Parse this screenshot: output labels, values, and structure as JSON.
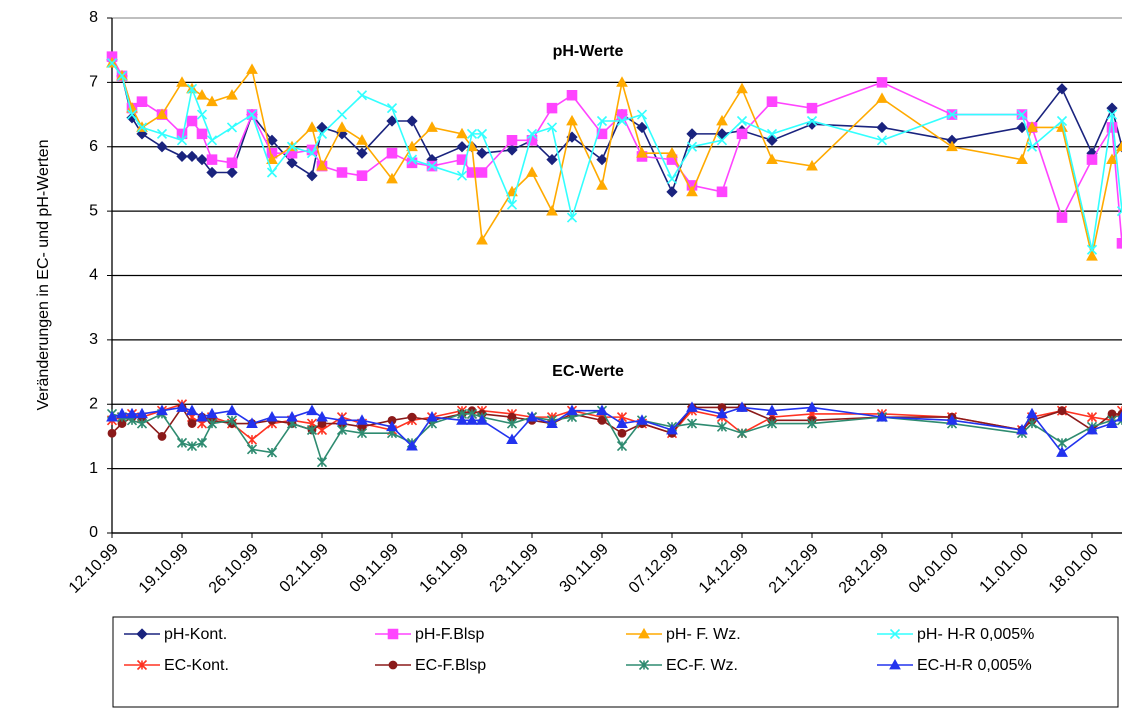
{
  "chart_data": {
    "type": "line",
    "annotations": [
      "pH-Werte",
      "EC-Werte"
    ],
    "ylabel": "Veränderungen in EC- und pH-Werten",
    "x": [
      "12.10.99",
      "13.10.99",
      "14.10.99",
      "15.10.99",
      "17.10.99",
      "19.10.99",
      "20.10.99",
      "21.10.99",
      "22.10.99",
      "24.10.99",
      "26.10.99",
      "28.10.99",
      "30.10.99",
      "01.11.99",
      "02.11.99",
      "04.11.99",
      "06.11.99",
      "09.11.99",
      "11.11.99",
      "13.11.99",
      "16.11.99",
      "17.11.99",
      "18.11.99",
      "21.11.99",
      "23.11.99",
      "25.11.99",
      "27.11.99",
      "30.11.99",
      "02.12.99",
      "04.12.99",
      "07.12.99",
      "09.12.99",
      "12.12.99",
      "14.12.99",
      "17.12.99",
      "21.12.99",
      "28.12.99",
      "04.01.00",
      "11.01.00",
      "12.01.00",
      "15.01.00",
      "18.01.00",
      "20.01.00",
      "21.01.00"
    ],
    "xlim": [
      "12.10.99",
      "21.01.00"
    ],
    "xticks": [
      "12.10.99",
      "19.10.99",
      "26.10.99",
      "02.11.99",
      "09.11.99",
      "16.11.99",
      "23.11.99",
      "30.11.99",
      "07.12.99",
      "14.12.99",
      "21.12.99",
      "28.12.99",
      "04.01.00",
      "11.01.00",
      "18.01.00"
    ],
    "ylim": [
      0,
      8
    ],
    "yticks": [
      0,
      1,
      2,
      3,
      4,
      5,
      6,
      7,
      8
    ],
    "grid": true,
    "series": [
      {
        "name": "pH-Kont.",
        "color": "#1a237e",
        "marker": "diamond",
        "values": [
          7.35,
          7.1,
          6.45,
          6.2,
          6.0,
          5.85,
          5.85,
          5.8,
          5.6,
          5.6,
          6.5,
          6.1,
          5.75,
          5.55,
          6.3,
          6.2,
          5.9,
          6.4,
          6.4,
          5.8,
          6.0,
          6.0,
          5.9,
          5.95,
          6.1,
          5.8,
          6.15,
          5.8,
          6.5,
          6.3,
          5.3,
          6.2,
          6.2,
          6.25,
          6.1,
          6.35,
          6.3,
          6.1,
          6.3,
          6.3,
          6.9,
          5.9,
          6.6,
          6.0
        ]
      },
      {
        "name": "pH-F.Blsp",
        "color": "#ff44ff",
        "marker": "square",
        "values": [
          7.4,
          7.1,
          6.6,
          6.7,
          6.5,
          6.2,
          6.4,
          6.2,
          5.8,
          5.75,
          6.5,
          5.9,
          5.9,
          5.95,
          5.7,
          5.6,
          5.55,
          5.9,
          5.75,
          5.7,
          5.8,
          5.6,
          5.6,
          6.1,
          6.1,
          6.6,
          6.8,
          6.2,
          6.5,
          5.85,
          5.8,
          5.4,
          5.3,
          6.2,
          6.7,
          6.6,
          7.0,
          6.5,
          6.5,
          6.3,
          4.9,
          5.8,
          6.3,
          4.5
        ]
      },
      {
        "name": "pH- F. Wz.",
        "color": "#ffaa00",
        "marker": "triangle",
        "values": [
          7.3,
          7.1,
          6.6,
          6.3,
          6.5,
          7.0,
          6.9,
          6.8,
          6.7,
          6.8,
          7.2,
          5.8,
          6.0,
          6.3,
          5.7,
          6.3,
          6.1,
          5.5,
          6.0,
          6.3,
          6.2,
          6.0,
          4.55,
          5.3,
          5.6,
          5.0,
          6.4,
          5.4,
          7.0,
          5.9,
          5.9,
          5.3,
          6.4,
          6.9,
          5.8,
          5.7,
          6.75,
          6.0,
          5.8,
          6.3,
          6.3,
          4.3,
          5.8,
          6.0
        ]
      },
      {
        "name": "pH- H-R 0,005%",
        "color": "#33ffff",
        "marker": "x",
        "values": [
          7.3,
          7.1,
          6.5,
          6.3,
          6.2,
          6.1,
          6.9,
          6.5,
          6.1,
          6.3,
          6.5,
          5.6,
          6.0,
          5.9,
          6.2,
          6.5,
          6.8,
          6.6,
          5.8,
          5.7,
          5.55,
          6.2,
          6.2,
          5.1,
          6.2,
          6.3,
          4.9,
          6.4,
          6.4,
          6.5,
          5.5,
          6.0,
          6.1,
          6.4,
          6.2,
          6.4,
          6.1,
          6.5,
          6.5,
          6.0,
          6.4,
          4.4,
          6.5,
          5.0
        ]
      },
      {
        "name": "EC-Kont.",
        "color": "#ff3322",
        "marker": "star",
        "values": [
          1.75,
          1.8,
          1.85,
          1.8,
          1.9,
          2.0,
          1.8,
          1.7,
          1.8,
          1.7,
          1.45,
          1.7,
          1.75,
          1.7,
          1.6,
          1.8,
          1.7,
          1.6,
          1.75,
          1.8,
          1.9,
          1.85,
          1.9,
          1.85,
          1.8,
          1.8,
          1.9,
          1.8,
          1.8,
          1.7,
          1.55,
          1.9,
          1.8,
          1.55,
          1.8,
          1.85,
          1.85,
          1.8,
          1.6,
          1.8,
          1.9,
          1.8,
          1.75,
          1.9
        ]
      },
      {
        "name": "EC-F.Blsp",
        "color": "#8b1a1a",
        "marker": "circle",
        "values": [
          1.55,
          1.7,
          1.8,
          1.8,
          1.5,
          1.95,
          1.7,
          1.8,
          1.75,
          1.7,
          1.7,
          1.75,
          1.7,
          1.6,
          1.7,
          1.7,
          1.65,
          1.75,
          1.8,
          1.75,
          1.85,
          1.9,
          1.85,
          1.8,
          1.75,
          1.7,
          1.85,
          1.75,
          1.55,
          1.7,
          1.55,
          1.95,
          1.95,
          1.95,
          1.75,
          1.75,
          1.8,
          1.8,
          1.6,
          1.75,
          1.9,
          1.6,
          1.85,
          1.85
        ]
      },
      {
        "name": "EC-F. Wz.",
        "color": "#2e8b70",
        "marker": "star",
        "values": [
          1.85,
          1.8,
          1.75,
          1.7,
          1.85,
          1.4,
          1.35,
          1.4,
          1.7,
          1.75,
          1.3,
          1.25,
          1.7,
          1.6,
          1.1,
          1.6,
          1.55,
          1.55,
          1.4,
          1.7,
          1.85,
          1.85,
          1.8,
          1.7,
          1.8,
          1.75,
          1.8,
          1.9,
          1.35,
          1.75,
          1.65,
          1.7,
          1.65,
          1.55,
          1.7,
          1.7,
          1.8,
          1.7,
          1.55,
          1.7,
          1.4,
          1.65,
          1.75,
          1.75
        ]
      },
      {
        "name": "EC-H-R 0,005%",
        "color": "#2233ee",
        "marker": "triangle",
        "values": [
          1.8,
          1.85,
          1.85,
          1.85,
          1.9,
          1.95,
          1.9,
          1.8,
          1.85,
          1.9,
          1.7,
          1.8,
          1.8,
          1.9,
          1.8,
          1.75,
          1.75,
          1.65,
          1.35,
          1.8,
          1.75,
          1.75,
          1.75,
          1.45,
          1.8,
          1.7,
          1.9,
          1.9,
          1.7,
          1.75,
          1.6,
          1.95,
          1.85,
          1.95,
          1.9,
          1.95,
          1.8,
          1.75,
          1.6,
          1.85,
          1.25,
          1.6,
          1.7,
          1.8
        ]
      }
    ]
  }
}
